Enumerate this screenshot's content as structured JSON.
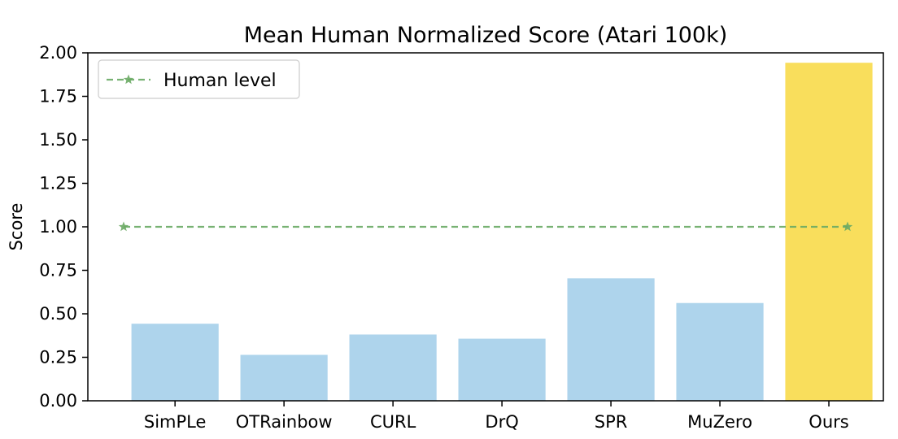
{
  "chart_data": {
    "type": "bar",
    "title": "Mean Human Normalized Score (Atari 100k)",
    "xlabel": "",
    "ylabel": "Score",
    "categories": [
      "SimPLe",
      "OTRainbow",
      "CURL",
      "DrQ",
      "SPR",
      "MuZero",
      "Ours"
    ],
    "values": [
      0.443,
      0.264,
      0.381,
      0.357,
      0.704,
      0.562,
      1.943
    ],
    "bar_colors": [
      "#aed4ec",
      "#aed4ec",
      "#aed4ec",
      "#aed4ec",
      "#aed4ec",
      "#aed4ec",
      "#f9de5c"
    ],
    "ylim": [
      0,
      2.0
    ],
    "yticks": [
      "0.00",
      "0.25",
      "0.50",
      "0.75",
      "1.00",
      "1.25",
      "1.50",
      "1.75",
      "2.00"
    ],
    "grid": false,
    "reference_line": {
      "name": "Human level",
      "value": 1.0,
      "style": "dashed",
      "marker": "star",
      "color": "#6aaa64"
    },
    "legend": {
      "position": "top-left",
      "entries": [
        "Human level"
      ]
    }
  }
}
